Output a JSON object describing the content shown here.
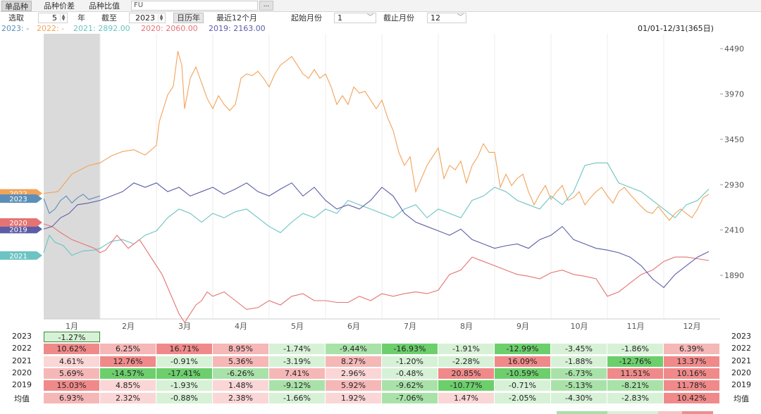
{
  "tabs": [
    {
      "label": "单品种",
      "active": true
    },
    {
      "label": "品种价差",
      "active": false
    },
    {
      "label": "品种比值",
      "active": false
    }
  ],
  "code_input": "FU",
  "more_label": "...",
  "controls": {
    "select_label": "选取",
    "years_value": "5",
    "years_unit": "年",
    "end_label": "截至",
    "end_year": "2023",
    "calendar_year_label": "日历年",
    "recent_label": "最近12个月",
    "start_month_label": "起始月份",
    "start_month_value": "1",
    "end_month_label": "截止月份",
    "end_month_value": "12"
  },
  "legend": [
    {
      "text": "2023: -",
      "color": "#5b8fb9"
    },
    {
      "text": "2022: -",
      "color": "#f2a35a"
    },
    {
      "text": "2021: 2892.00",
      "color": "#6cc3c3"
    },
    {
      "text": "2020: 2060.00",
      "color": "#e57373"
    },
    {
      "text": "2019: 2163.00",
      "color": "#5b5ea6"
    }
  ],
  "date_range": "01/01-12/31(365日)",
  "chart_data": {
    "type": "line",
    "title": "",
    "x_unit": "month",
    "xlim": [
      0,
      12
    ],
    "ylim": [
      1390,
      4660
    ],
    "y_ticks": [
      4490,
      3970,
      3450,
      2930,
      2410,
      1890
    ],
    "x_tick_labels": [
      "1月",
      "2月",
      "3月",
      "4月",
      "5月",
      "6月",
      "7月",
      "8月",
      "9月",
      "10月",
      "11月",
      "12月"
    ],
    "highlight_month_range": [
      0,
      1
    ],
    "series": [
      {
        "name": "2022",
        "color": "#f2a35a",
        "x": [
          0,
          0.25,
          0.5,
          0.8,
          1.0,
          1.2,
          1.4,
          1.6,
          1.8,
          2.0,
          2.05,
          2.2,
          2.3,
          2.38,
          2.45,
          2.5,
          2.6,
          2.7,
          2.8,
          2.9,
          3.0,
          3.1,
          3.2,
          3.3,
          3.4,
          3.5,
          3.6,
          3.7,
          3.8,
          3.9,
          4.0,
          4.1,
          4.2,
          4.3,
          4.4,
          4.5,
          4.6,
          4.7,
          4.8,
          4.9,
          5.0,
          5.1,
          5.2,
          5.3,
          5.4,
          5.5,
          5.6,
          5.7,
          5.8,
          5.9,
          6.0,
          6.1,
          6.2,
          6.3,
          6.4,
          6.5,
          6.6,
          6.7,
          6.8,
          6.9,
          7.0,
          7.1,
          7.2,
          7.3,
          7.4,
          7.5,
          7.6,
          7.7,
          7.8,
          7.9,
          8.0,
          8.1,
          8.2,
          8.3,
          8.4,
          8.5,
          8.6,
          8.7,
          8.8,
          8.9,
          9.0,
          9.1,
          9.2,
          9.3,
          9.4,
          9.5,
          9.6,
          9.7,
          9.8,
          9.9,
          10.0,
          10.1,
          10.2,
          10.3,
          10.4,
          10.5,
          10.6,
          10.7,
          10.8,
          10.9,
          11.0,
          11.1,
          11.2,
          11.3,
          11.4,
          11.5,
          11.6,
          11.7,
          11.8
        ],
        "y": [
          2830,
          2850,
          3050,
          3150,
          3180,
          3260,
          3310,
          3330,
          3270,
          3380,
          3650,
          3960,
          4060,
          4460,
          4300,
          3800,
          4150,
          4280,
          4100,
          3920,
          3800,
          3950,
          3850,
          3780,
          3850,
          4150,
          4200,
          4180,
          4230,
          4150,
          4050,
          4200,
          4300,
          4350,
          4400,
          4300,
          4200,
          4150,
          4250,
          4150,
          4200,
          4050,
          3850,
          3950,
          3850,
          4050,
          3980,
          4000,
          3900,
          3800,
          3900,
          3700,
          3550,
          3300,
          3150,
          3250,
          2850,
          3000,
          3150,
          3250,
          3350,
          3000,
          3150,
          3100,
          3200,
          2950,
          3150,
          3250,
          3400,
          3300,
          3300,
          2900,
          3050,
          2920,
          3000,
          3050,
          2850,
          2700,
          2820,
          2920,
          2760,
          2850,
          2920,
          2750,
          2780,
          2850,
          2700,
          2780,
          2850,
          2900,
          2800,
          2720,
          2850,
          2900,
          2820,
          2750,
          2680,
          2620,
          2600,
          2680,
          2600,
          2520,
          2600,
          2650,
          2600,
          2550,
          2650,
          2780,
          2820
        ]
      },
      {
        "name": "2023",
        "color": "#5b8fb9",
        "x": [
          0,
          0.1,
          0.2,
          0.3,
          0.4,
          0.5,
          0.6,
          0.7,
          0.8,
          0.9,
          1.0
        ],
        "y": [
          2770,
          2600,
          2650,
          2750,
          2800,
          2720,
          2780,
          2820,
          2760,
          2780,
          2800
        ]
      },
      {
        "name": "2021",
        "color": "#6cc3c3",
        "x": [
          0,
          0.1,
          0.2,
          0.35,
          0.5,
          0.7,
          0.9,
          1.0,
          1.2,
          1.4,
          1.6,
          1.8,
          2.0,
          2.2,
          2.4,
          2.6,
          2.8,
          3.0,
          3.2,
          3.4,
          3.6,
          3.8,
          4.0,
          4.2,
          4.4,
          4.6,
          4.8,
          5.0,
          5.2,
          5.4,
          5.6,
          5.8,
          6.0,
          6.2,
          6.4,
          6.6,
          6.8,
          7.0,
          7.2,
          7.4,
          7.6,
          7.8,
          8.0,
          8.2,
          8.4,
          8.6,
          8.8,
          9.0,
          9.2,
          9.4,
          9.6,
          9.8,
          10.0,
          10.2,
          10.4,
          10.6,
          10.8,
          11.0,
          11.2,
          11.4,
          11.6,
          11.8
        ],
        "y": [
          2150,
          2350,
          2270,
          2230,
          2120,
          2170,
          2180,
          2200,
          2280,
          2300,
          2250,
          2350,
          2400,
          2550,
          2650,
          2600,
          2500,
          2600,
          2550,
          2620,
          2650,
          2550,
          2450,
          2380,
          2500,
          2600,
          2550,
          2650,
          2600,
          2750,
          2700,
          2650,
          2600,
          2550,
          2650,
          2700,
          2550,
          2650,
          2600,
          2550,
          2750,
          2800,
          2900,
          2850,
          2750,
          2700,
          2650,
          2800,
          2700,
          2850,
          3150,
          3180,
          3180,
          2950,
          2900,
          2850,
          2750,
          2650,
          2550,
          2700,
          2750,
          2880
        ]
      },
      {
        "name": "2020",
        "color": "#e57373",
        "x": [
          0,
          0.15,
          0.3,
          0.5,
          0.7,
          0.9,
          1.0,
          1.1,
          1.3,
          1.5,
          1.7,
          1.9,
          2.0,
          2.1,
          2.2,
          2.3,
          2.4,
          2.5,
          2.6,
          2.7,
          2.8,
          2.9,
          3.0,
          3.2,
          3.4,
          3.6,
          3.8,
          4.0,
          4.2,
          4.4,
          4.6,
          4.8,
          5.0,
          5.2,
          5.4,
          5.6,
          5.8,
          6.0,
          6.2,
          6.4,
          6.6,
          6.8,
          7.0,
          7.2,
          7.4,
          7.6,
          7.8,
          8.0,
          8.2,
          8.4,
          8.6,
          8.8,
          9.0,
          9.2,
          9.4,
          9.6,
          9.8,
          10.0,
          10.2,
          10.4,
          10.6,
          10.8,
          11.0,
          11.2,
          11.4,
          11.6,
          11.8
        ],
        "y": [
          2480,
          2450,
          2380,
          2300,
          2250,
          2200,
          2150,
          2180,
          2350,
          2200,
          2300,
          2100,
          2000,
          1900,
          1750,
          1600,
          1450,
          1350,
          1450,
          1550,
          1600,
          1700,
          1650,
          1700,
          1600,
          1500,
          1520,
          1600,
          1550,
          1650,
          1680,
          1600,
          1600,
          1580,
          1580,
          1650,
          1600,
          1680,
          1650,
          1680,
          1700,
          1680,
          1720,
          1900,
          1950,
          2100,
          2050,
          2000,
          1950,
          1900,
          1880,
          1850,
          1920,
          1950,
          1900,
          1880,
          1850,
          1650,
          1700,
          1800,
          1900,
          1950,
          2050,
          2100,
          2100,
          2080,
          2060
        ]
      },
      {
        "name": "2019",
        "color": "#5b5ea6",
        "x": [
          0,
          0.15,
          0.3,
          0.45,
          0.6,
          0.8,
          1.0,
          1.2,
          1.4,
          1.6,
          1.8,
          2.0,
          2.2,
          2.4,
          2.6,
          2.8,
          3.0,
          3.2,
          3.4,
          3.6,
          3.8,
          4.0,
          4.2,
          4.4,
          4.6,
          4.8,
          5.0,
          5.2,
          5.4,
          5.6,
          5.8,
          6.0,
          6.2,
          6.4,
          6.6,
          6.8,
          7.0,
          7.2,
          7.4,
          7.6,
          7.8,
          8.0,
          8.2,
          8.4,
          8.6,
          8.8,
          9.0,
          9.2,
          9.4,
          9.6,
          9.8,
          10.0,
          10.2,
          10.4,
          10.6,
          10.8,
          11.0,
          11.2,
          11.4,
          11.6,
          11.8
        ],
        "y": [
          2420,
          2450,
          2550,
          2600,
          2700,
          2720,
          2750,
          2800,
          2850,
          2950,
          2900,
          2950,
          2850,
          2900,
          2800,
          2850,
          2900,
          2820,
          2880,
          2950,
          2850,
          2800,
          2880,
          2950,
          2800,
          2900,
          2750,
          2650,
          2700,
          2650,
          2750,
          2900,
          2800,
          2600,
          2500,
          2450,
          2400,
          2350,
          2420,
          2300,
          2250,
          2200,
          2230,
          2250,
          2200,
          2300,
          2350,
          2450,
          2300,
          2250,
          2200,
          2180,
          2150,
          2100,
          2000,
          1850,
          1750,
          1900,
          2000,
          2100,
          2163
        ]
      }
    ]
  },
  "table": {
    "years": [
      "2023",
      "2022",
      "2021",
      "2020",
      "2019"
    ],
    "avg_label": "均值",
    "rows": [
      {
        "year": "2023",
        "values": [
          "-1.27%",
          "",
          "",
          "",
          "",
          "",
          "",
          "",
          "",
          "",
          "",
          ""
        ]
      },
      {
        "year": "2022",
        "values": [
          "10.62%",
          "6.25%",
          "16.71%",
          "8.95%",
          "-1.74%",
          "-9.44%",
          "-16.93%",
          "-1.91%",
          "-12.99%",
          "-3.45%",
          "-1.86%",
          "6.39%"
        ]
      },
      {
        "year": "2021",
        "values": [
          "4.61%",
          "12.76%",
          "-0.91%",
          "5.36%",
          "-3.19%",
          "8.27%",
          "-1.20%",
          "-2.28%",
          "16.09%",
          "-1.88%",
          "-12.76%",
          "13.37%"
        ]
      },
      {
        "year": "2020",
        "values": [
          "5.69%",
          "-14.57%",
          "-17.41%",
          "-6.26%",
          "7.41%",
          "2.96%",
          "-0.48%",
          "20.85%",
          "-10.59%",
          "-6.73%",
          "11.51%",
          "10.16%"
        ]
      },
      {
        "year": "2019",
        "values": [
          "15.03%",
          "4.85%",
          "-1.93%",
          "1.48%",
          "-9.12%",
          "5.92%",
          "-9.62%",
          "-10.77%",
          "-0.71%",
          "-5.13%",
          "-8.21%",
          "11.78%"
        ]
      },
      {
        "year": "均值",
        "values": [
          "6.93%",
          "2.32%",
          "-0.88%",
          "2.38%",
          "-1.66%",
          "1.92%",
          "-7.06%",
          "1.47%",
          "-2.05%",
          "-4.30%",
          "-2.83%",
          "10.42%"
        ]
      }
    ]
  }
}
